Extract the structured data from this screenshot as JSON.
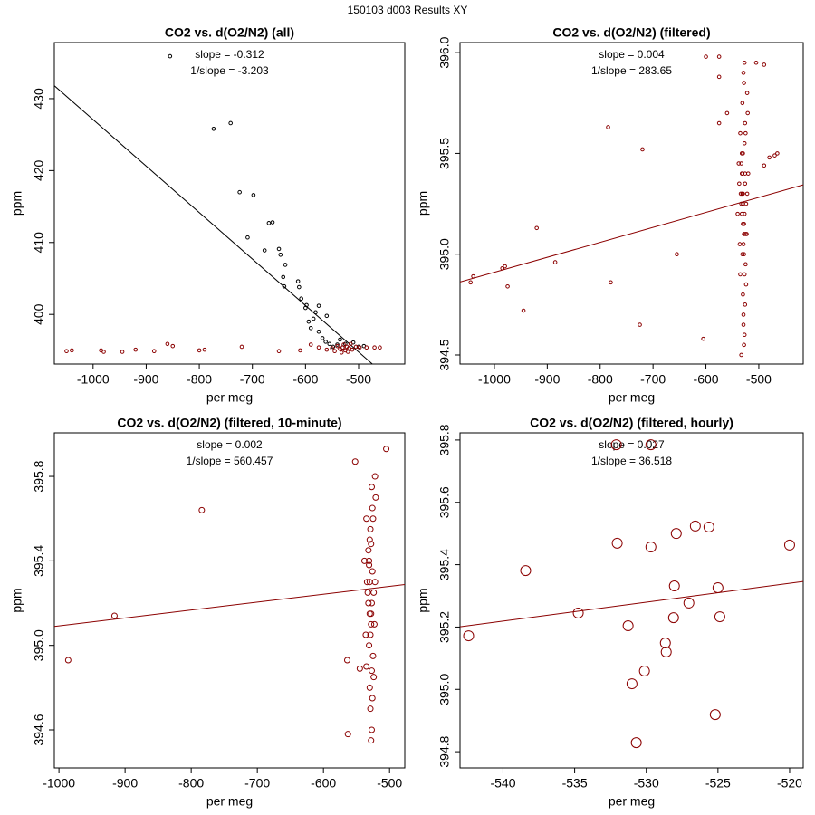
{
  "title": "150103   d003   Results XY",
  "chart_data": [
    {
      "type": "scatter",
      "title": "CO2 vs. d(O2/N2) (all)",
      "annotations": [
        "slope = -0.312",
        "1/slope = -3.203"
      ],
      "annotation_color": "#000000",
      "xlabel": "per meg",
      "ylabel": "ppm",
      "xlim": [
        -1073,
        -413
      ],
      "ylim": [
        393.1,
        437.8
      ],
      "xticks": [
        -1000,
        -900,
        -800,
        -700,
        -600,
        -500
      ],
      "yticks": [
        400,
        410,
        420,
        430
      ],
      "series": [
        {
          "color": "#000000",
          "x": [
            -855,
            -773,
            -741,
            -724,
            -698,
            -709,
            -669,
            -662,
            -677,
            -650,
            -647,
            -642,
            -640,
            -638,
            -614,
            -612,
            -608,
            -600,
            -598,
            -594,
            -590,
            -585,
            -575,
            -568,
            -562,
            -555,
            -548,
            -540,
            -535,
            -530,
            -525,
            -518,
            -510,
            -500,
            -490,
            -575,
            -581,
            -560
          ],
          "values": [
            435.9,
            425.8,
            426.6,
            417.0,
            416.6,
            410.7,
            412.7,
            412.8,
            408.9,
            409.1,
            408.3,
            405.2,
            403.9,
            406.9,
            404.6,
            403.8,
            402.2,
            400.9,
            401.3,
            399.0,
            398.1,
            399.4,
            397.6,
            396.7,
            396.2,
            395.9,
            395.5,
            395.8,
            396.5,
            395.4,
            395.9,
            395.3,
            396.1,
            395.5,
            395.6,
            401.2,
            400.3,
            399.8
          ]
        },
        {
          "color": "#8b0000",
          "x": [
            -1050,
            -1040,
            -985,
            -980,
            -945,
            -920,
            -885,
            -860,
            -850,
            -800,
            -790,
            -720,
            -650,
            -610,
            -590,
            -575,
            -560,
            -550,
            -545,
            -540,
            -535,
            -532,
            -530,
            -528,
            -525,
            -522,
            -520,
            -518,
            -515,
            -512,
            -505,
            -498,
            -485,
            -470,
            -460
          ],
          "values": [
            394.9,
            395.0,
            395.0,
            394.8,
            394.8,
            395.1,
            394.9,
            395.9,
            395.6,
            395.0,
            395.1,
            395.5,
            394.9,
            395.0,
            395.8,
            395.4,
            395.1,
            395.3,
            394.9,
            395.6,
            395.2,
            394.7,
            395.4,
            395.8,
            395.0,
            395.5,
            394.8,
            395.3,
            395.9,
            395.1,
            395.5,
            395.4,
            395.4,
            395.4,
            395.4
          ]
        }
      ],
      "fit": {
        "color": "#000000",
        "x": [
          -1073,
          -474
        ],
        "values": [
          431.8,
          393.1
        ]
      }
    },
    {
      "type": "scatter",
      "title": "CO2 vs. d(O2/N2) (filtered)",
      "annotations": [
        "slope = 0.004",
        "1/slope = 283.65"
      ],
      "annotation_color": "#8b0000",
      "xlabel": "per meg",
      "ylabel": "ppm",
      "xlim": [
        -1065,
        -416
      ],
      "ylim": [
        394.455,
        396.05
      ],
      "xticks": [
        -1000,
        -900,
        -800,
        -700,
        -600,
        -500
      ],
      "yticks": [
        394.5,
        {
          "value": 395,
          "label": "395.0"
        },
        395.5,
        {
          "value": 396,
          "label": "396.0"
        }
      ],
      "series": [
        {
          "color": "#8b0000",
          "x": [
            -1045,
            -1040,
            -985,
            -980,
            -975,
            -945,
            -920,
            -885,
            -785,
            -780,
            -720,
            -725,
            -655,
            -605,
            -600,
            -575,
            -575,
            -575,
            -560,
            -465,
            -480,
            -470,
            -490,
            -505,
            -490,
            -530,
            -528,
            -532,
            -525,
            -535,
            -527,
            -531,
            -522,
            -538,
            -529,
            -526,
            -533,
            -524,
            -530,
            -528,
            -536,
            -521,
            -527,
            -531,
            -534,
            -529,
            -525,
            -532,
            -527,
            -523,
            -530,
            -537,
            -526,
            -528,
            -533,
            -524,
            -531,
            -529,
            -527,
            -535,
            -522,
            -530,
            -526,
            -532,
            -528,
            -540,
            -520,
            -529,
            -531,
            -525,
            -527,
            -533,
            -530,
            -526,
            -528
          ],
          "values": [
            394.86,
            394.89,
            394.93,
            394.94,
            394.84,
            394.72,
            395.13,
            394.96,
            395.63,
            394.86,
            395.52,
            394.65,
            395.0,
            394.58,
            395.98,
            395.98,
            395.88,
            395.65,
            395.7,
            395.5,
            395.48,
            395.49,
            395.44,
            395.95,
            395.94,
            395.3,
            395.1,
            395.4,
            395.6,
            394.9,
            395.2,
            395.0,
            395.8,
            395.45,
            394.7,
            395.35,
            395.25,
            394.85,
            395.5,
            395.15,
            395.05,
            395.7,
            394.6,
            395.4,
            395.3,
            395.9,
            394.95,
            395.2,
            395.55,
            395.1,
            394.8,
            395.35,
            395.65,
            394.55,
            395.45,
            395.25,
            395.75,
            395.05,
            394.9,
            395.6,
            395.3,
            395.15,
            394.75,
            395.5,
            395.85,
            395.2,
            395.4,
            394.65,
            395.3,
            395.1,
            395.95,
            394.5,
            395.25,
            395.4,
            395.0
          ]
        }
      ],
      "fit": {
        "color": "#8b0000",
        "x": [
          -1065,
          -416
        ],
        "values": [
          394.862,
          395.344
        ]
      }
    },
    {
      "type": "scatter",
      "title": "CO2 vs. d(O2/N2) (filtered, 10-minute)",
      "annotations": [
        "slope = 0.002",
        "1/slope = 560.457"
      ],
      "annotation_color": "#8b0000",
      "xlabel": "per meg",
      "ylabel": "ppm",
      "xlim": [
        -1007,
        -477
      ],
      "ylim": [
        394.42,
        396.006
      ],
      "xticks": [
        -1000,
        -900,
        -800,
        -700,
        -600,
        -500
      ],
      "yticks": [
        394.6,
        {
          "value": 395,
          "label": "395.0"
        },
        395.4,
        395.8
      ],
      "series": [
        {
          "color": "#8b0000",
          "x": [
            -986,
            -916,
            -784,
            -564,
            -563,
            -530,
            -528,
            -532,
            -525,
            -535,
            -527,
            -531,
            -522,
            -538,
            -529,
            -526,
            -533,
            -524,
            -530,
            -528,
            -536,
            -521,
            -527,
            -531,
            -534,
            -529,
            -525,
            -532,
            -527,
            -523,
            -530,
            -552,
            -526,
            -528,
            -505,
            -524,
            -531,
            -529,
            -527,
            -535,
            -522,
            -530,
            -526,
            -545,
            -528
          ],
          "values": [
            394.93,
            395.14,
            395.64,
            394.93,
            394.58,
            395.3,
            395.1,
            395.45,
            395.6,
            394.9,
            395.2,
            395.0,
            395.8,
            395.4,
            394.7,
            395.35,
            395.25,
            394.85,
            395.5,
            395.15,
            395.05,
            395.7,
            394.6,
            395.4,
            395.3,
            395.55,
            394.95,
            395.2,
            395.75,
            395.1,
            394.8,
            395.87,
            395.65,
            394.55,
            395.93,
            395.25,
            395.38,
            395.05,
            394.88,
            395.6,
            395.3,
            395.15,
            394.75,
            394.89,
            395.48
          ]
        }
      ],
      "fit": {
        "color": "#8b0000",
        "x": [
          -1007,
          -477
        ],
        "values": [
          395.09,
          395.288
        ]
      }
    },
    {
      "type": "scatter",
      "title": "CO2 vs. d(O2/N2) (filtered, hourly)",
      "annotations": [
        "slope = 0.027",
        "1/slope = 36.518"
      ],
      "annotation_color": "#8b0000",
      "xlabel": "per meg",
      "ylabel": "ppm",
      "xlim": [
        -543.0,
        -519.05
      ],
      "ylim": [
        394.748,
        395.823
      ],
      "xticks": [
        -540,
        -535,
        -530,
        -525,
        -520
      ],
      "yticks": [
        394.8,
        {
          "value": 395,
          "label": "395.0"
        },
        395.2,
        395.4,
        395.6,
        395.8
      ],
      "series": [
        {
          "color": "#8b0000",
          "x": [
            -542.4,
            -538.42,
            -534.75,
            -531.27,
            -532.03,
            -530.7,
            -530.13,
            -529.68,
            -528.67,
            -528.61,
            -528.1,
            -527.91,
            -528.04,
            -526.58,
            -527.03,
            -525.63,
            -525.19,
            -525.0,
            -524.87,
            -520.0,
            -532.09,
            -529.68,
            -531.0
          ],
          "values": [
            395.172,
            395.381,
            395.245,
            395.204,
            395.469,
            394.829,
            395.059,
            395.457,
            395.149,
            395.12,
            395.23,
            395.5,
            395.332,
            395.524,
            395.277,
            395.521,
            394.919,
            395.326,
            395.233,
            395.463,
            395.785,
            395.785,
            395.018
          ]
        }
      ],
      "fit": {
        "color": "#8b0000",
        "x": [
          -543.0,
          -519.05
        ],
        "values": [
          395.201,
          395.346
        ]
      }
    }
  ]
}
